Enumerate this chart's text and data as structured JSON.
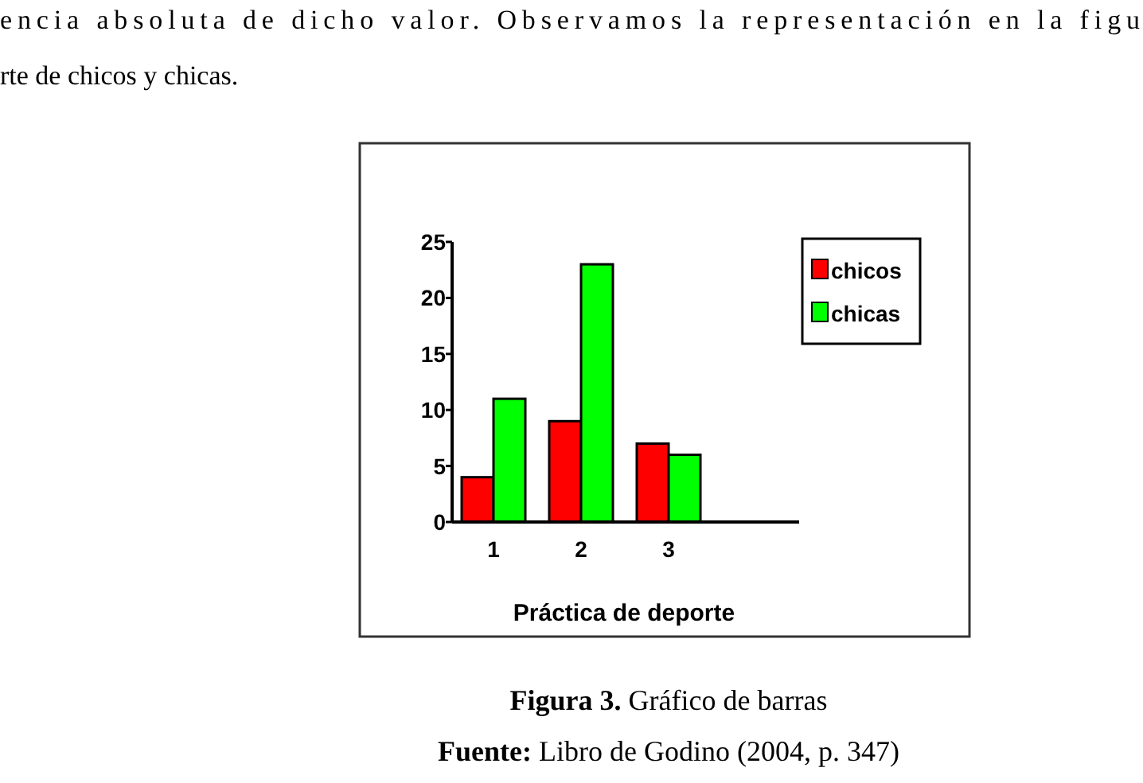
{
  "chart_data": {
    "type": "bar",
    "title": "Figura 3. Gráfico de barras",
    "xlabel": "Práctica de deporte",
    "categories": [
      "1",
      "2",
      "3"
    ],
    "series": [
      {
        "name": "chicos",
        "color": "#ff0000",
        "values": [
          4,
          9,
          7
        ]
      },
      {
        "name": "chicas",
        "color": "#00ff00",
        "values": [
          11,
          23,
          6
        ]
      }
    ],
    "ylim": [
      0,
      25
    ],
    "yticks": [
      0,
      5,
      10,
      15,
      20,
      25
    ],
    "legend": "top right",
    "annotations": [
      "encia absoluta de dicho valor. Observamos la representación en la figu",
      "rte de chicos y chicas.",
      "Fuente: Libro de Godino (2004, p. 347)"
    ]
  }
}
